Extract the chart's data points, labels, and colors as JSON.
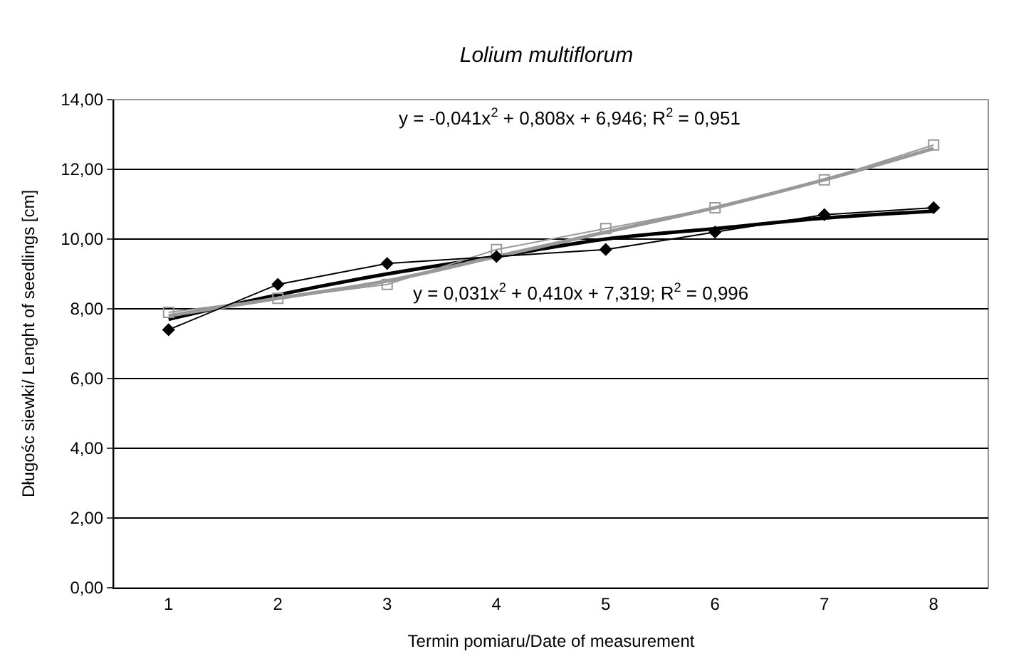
{
  "chart_data": {
    "type": "line",
    "title": "Lolium multiflorum",
    "xlabel": "Termin pomiaru/Date of measurement",
    "ylabel": "Długośc siewki/ Lenght of seedlings [cm]",
    "categories": [
      "1",
      "2",
      "3",
      "4",
      "5",
      "6",
      "7",
      "8"
    ],
    "series": [
      {
        "color": "#000000",
        "marker": "none",
        "values": [
          7.7,
          8.4,
          9.0,
          9.5,
          10.0,
          10.3,
          10.6,
          10.8
        ]
      },
      {
        "color": "#999999",
        "marker": "none",
        "values": [
          7.8,
          8.3,
          8.8,
          9.5,
          10.2,
          10.9,
          11.7,
          12.6
        ]
      },
      {
        "color": "#999999",
        "marker": "square",
        "values": [
          7.9,
          8.3,
          8.7,
          9.7,
          10.3,
          10.9,
          11.7,
          12.7
        ]
      },
      {
        "color": "#000000",
        "marker": "diamond",
        "values": [
          7.4,
          8.7,
          9.3,
          9.5,
          9.7,
          10.2,
          10.7,
          10.9
        ]
      }
    ],
    "ylim": [
      0,
      14
    ],
    "yticks": [
      {
        "value": 0,
        "label": "0,00"
      },
      {
        "value": 2,
        "label": "2,00"
      },
      {
        "value": 4,
        "label": "4,00"
      },
      {
        "value": 6,
        "label": "6,00"
      },
      {
        "value": 8,
        "label": "8,00"
      },
      {
        "value": 10,
        "label": "10,00"
      },
      {
        "value": 12,
        "label": "12,00"
      },
      {
        "value": 14,
        "label": "14,00"
      }
    ],
    "grid": "y",
    "legend": false,
    "annotations": [
      "y = -0,041x$^{2}$ + 0,808x + 6,946; R$^{2}$ = 0,951",
      "y = 0,031x$^{2}$ + 0,410x + 7,319; R$^{2}$ = 0,996"
    ]
  }
}
